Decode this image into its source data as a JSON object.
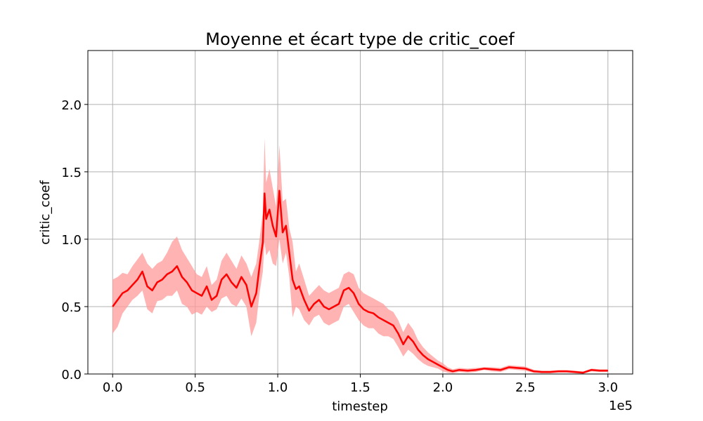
{
  "chart_data": {
    "type": "line",
    "title": "Moyenne et écart type de critic_coef",
    "xlabel": "timestep",
    "ylabel": "critic_coef",
    "x_offset_label": "1e5",
    "xlim": [
      -15000,
      315000
    ],
    "ylim": [
      0,
      2.4
    ],
    "x_ticks": [
      0,
      50000,
      100000,
      150000,
      200000,
      250000,
      300000
    ],
    "x_tick_labels": [
      "0.0",
      "0.5",
      "1.0",
      "1.5",
      "2.0",
      "2.5",
      "3.0"
    ],
    "y_ticks": [
      0,
      0.5,
      1.0,
      1.5,
      2.0
    ],
    "y_tick_labels": [
      "0.0",
      "0.5",
      "1.0",
      "1.5",
      "2.0"
    ],
    "grid": true,
    "colors": {
      "line": "#ff0000",
      "band": "#ff9999"
    },
    "series": [
      {
        "x": [
          0,
          3000,
          6000,
          9000,
          12000,
          15000,
          18000,
          21000,
          24000,
          27000,
          30000,
          33000,
          36000,
          39000,
          42000,
          45000,
          48000,
          51000,
          54000,
          57000,
          60000,
          63000,
          66000,
          69000,
          72000,
          75000,
          78000,
          81000,
          84000,
          87000,
          89000,
          91000,
          92000,
          93000,
          95000,
          97000,
          99000,
          101000,
          103000,
          105000,
          107000,
          109000,
          111000,
          113000,
          116000,
          119000,
          122000,
          125000,
          128000,
          131000,
          134000,
          137000,
          140000,
          143000,
          146000,
          149000,
          152000,
          155000,
          158000,
          161000,
          164000,
          167000,
          170000,
          173000,
          176000,
          179000,
          182000,
          185000,
          188000,
          191000,
          194000,
          197000,
          200000,
          203000,
          206000,
          210000,
          215000,
          220000,
          225000,
          230000,
          235000,
          240000,
          245000,
          250000,
          255000,
          260000,
          265000,
          270000,
          275000,
          280000,
          285000,
          290000,
          295000,
          300000
        ],
        "y": [
          0.5,
          0.55,
          0.6,
          0.62,
          0.66,
          0.7,
          0.76,
          0.65,
          0.62,
          0.68,
          0.7,
          0.74,
          0.76,
          0.8,
          0.72,
          0.68,
          0.62,
          0.6,
          0.58,
          0.65,
          0.55,
          0.58,
          0.7,
          0.74,
          0.68,
          0.64,
          0.72,
          0.66,
          0.5,
          0.6,
          0.8,
          0.98,
          1.34,
          1.15,
          1.22,
          1.1,
          1.02,
          1.36,
          1.05,
          1.1,
          0.9,
          0.7,
          0.63,
          0.65,
          0.55,
          0.47,
          0.52,
          0.55,
          0.5,
          0.48,
          0.5,
          0.52,
          0.62,
          0.64,
          0.6,
          0.52,
          0.48,
          0.46,
          0.45,
          0.42,
          0.4,
          0.38,
          0.36,
          0.3,
          0.22,
          0.28,
          0.24,
          0.18,
          0.14,
          0.11,
          0.09,
          0.07,
          0.05,
          0.03,
          0.02,
          0.03,
          0.025,
          0.03,
          0.04,
          0.035,
          0.03,
          0.05,
          0.045,
          0.04,
          0.02,
          0.015,
          0.015,
          0.02,
          0.02,
          0.015,
          0.01,
          0.03,
          0.025,
          0.025
        ],
        "lower": [
          0.3,
          0.35,
          0.45,
          0.5,
          0.55,
          0.58,
          0.62,
          0.48,
          0.45,
          0.54,
          0.55,
          0.58,
          0.58,
          0.62,
          0.52,
          0.5,
          0.44,
          0.46,
          0.44,
          0.5,
          0.46,
          0.48,
          0.56,
          0.58,
          0.52,
          0.5,
          0.56,
          0.5,
          0.28,
          0.38,
          0.6,
          0.76,
          0.98,
          0.88,
          0.92,
          0.82,
          0.8,
          1.0,
          0.82,
          0.9,
          0.72,
          0.42,
          0.5,
          0.48,
          0.4,
          0.36,
          0.42,
          0.44,
          0.38,
          0.36,
          0.38,
          0.4,
          0.5,
          0.52,
          0.46,
          0.4,
          0.36,
          0.34,
          0.34,
          0.3,
          0.28,
          0.28,
          0.26,
          0.2,
          0.13,
          0.18,
          0.15,
          0.11,
          0.08,
          0.06,
          0.05,
          0.04,
          0.02,
          0.01,
          0.005,
          0.015,
          0.01,
          0.015,
          0.03,
          0.02,
          0.015,
          0.035,
          0.03,
          0.025,
          0.008,
          0.005,
          0.005,
          0.01,
          0.01,
          0.005,
          0.002,
          0.02,
          0.015,
          0.015
        ],
        "upper": [
          0.7,
          0.72,
          0.75,
          0.74,
          0.8,
          0.85,
          0.9,
          0.82,
          0.78,
          0.82,
          0.84,
          0.9,
          0.98,
          1.02,
          0.92,
          0.86,
          0.8,
          0.74,
          0.72,
          0.8,
          0.66,
          0.7,
          0.84,
          0.9,
          0.84,
          0.78,
          0.88,
          0.82,
          0.72,
          0.82,
          1.0,
          1.2,
          1.75,
          1.42,
          1.52,
          1.38,
          1.24,
          1.7,
          1.28,
          1.3,
          1.08,
          0.98,
          0.76,
          0.82,
          0.7,
          0.58,
          0.62,
          0.66,
          0.62,
          0.6,
          0.62,
          0.64,
          0.74,
          0.76,
          0.74,
          0.64,
          0.6,
          0.58,
          0.56,
          0.54,
          0.52,
          0.48,
          0.46,
          0.4,
          0.31,
          0.38,
          0.33,
          0.25,
          0.2,
          0.16,
          0.13,
          0.1,
          0.08,
          0.05,
          0.035,
          0.045,
          0.04,
          0.045,
          0.05,
          0.05,
          0.045,
          0.065,
          0.06,
          0.055,
          0.032,
          0.025,
          0.025,
          0.03,
          0.03,
          0.025,
          0.018,
          0.04,
          0.035,
          0.035
        ]
      }
    ]
  }
}
